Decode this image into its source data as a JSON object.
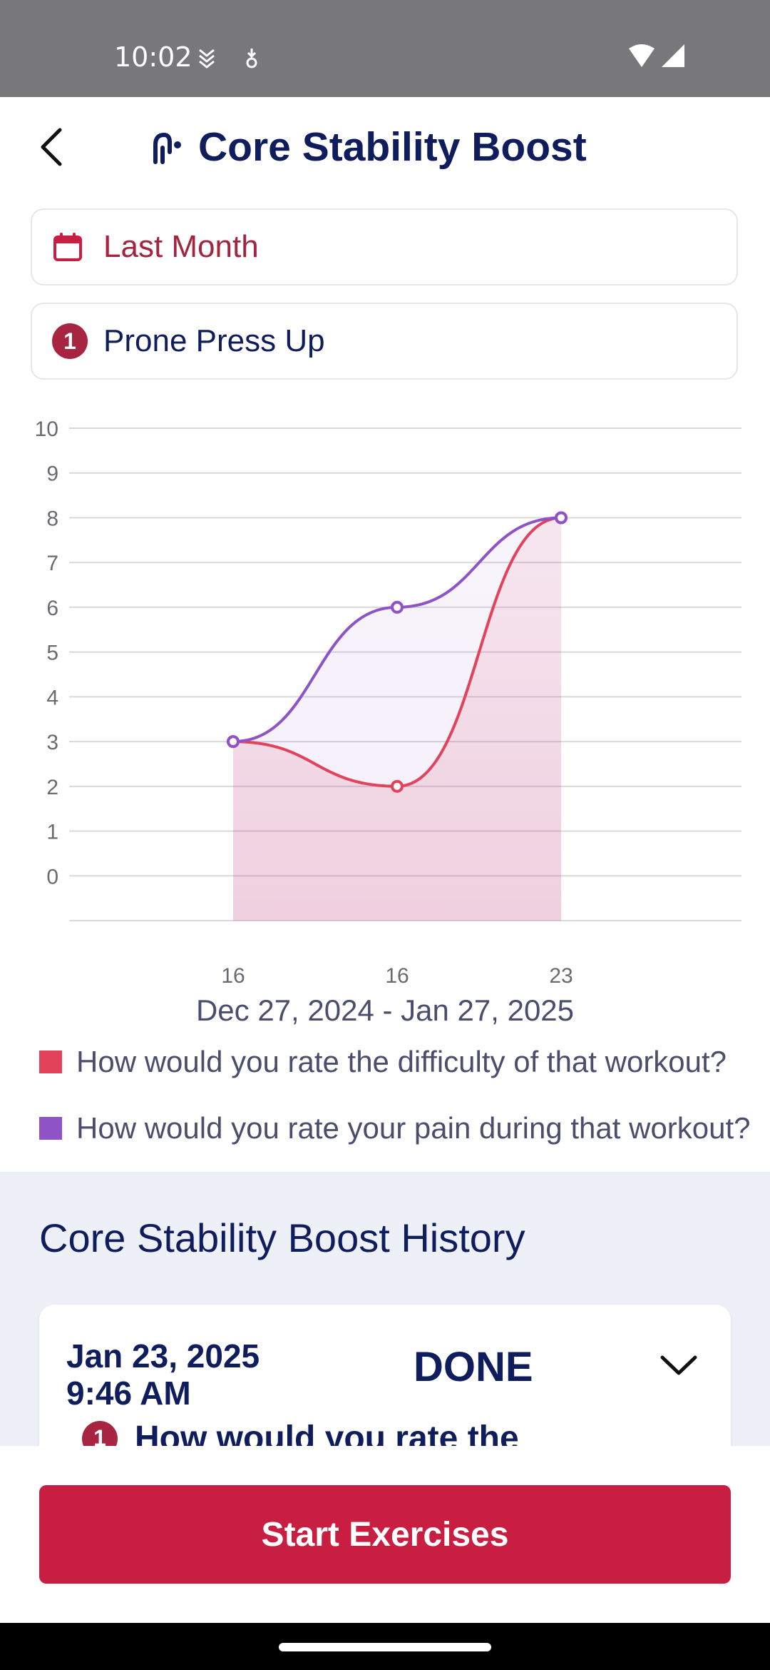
{
  "status_bar": {
    "time": "10:02",
    "left_icons": [
      "layers-icon",
      "download-icon"
    ],
    "right_icons": [
      "wifi-icon",
      "signal-icon"
    ]
  },
  "header": {
    "title": "Core Stability Boost",
    "back_icon": "chevron-left-icon",
    "title_icon": "exercise-figure-icon"
  },
  "date_picker": {
    "label": "Last Month",
    "icon": "calendar-icon"
  },
  "exercise_picker": {
    "number": "1",
    "label": "Prone Press Up"
  },
  "chart_data": {
    "type": "line",
    "x": [
      "16",
      "16",
      "23"
    ],
    "x_range_label": "Dec 27, 2024 - Jan 27, 2025",
    "yticks": [
      10,
      9,
      8,
      7,
      6,
      5,
      4,
      3,
      2,
      1,
      0
    ],
    "ylim": [
      -1,
      10
    ],
    "grid": true,
    "legend_position": "bottom",
    "series": [
      {
        "name": "How would you rate the difficulty of that workout?",
        "values": [
          3,
          2,
          8
        ],
        "color": "#e2435a"
      },
      {
        "name": "How would you rate your pain during that workout?",
        "values": [
          3,
          6,
          8
        ],
        "color": "#8e54c7"
      }
    ]
  },
  "history": {
    "title": "Core Stability Boost History",
    "card": {
      "date": "Jan 23, 2025",
      "time": "9:46 AM",
      "status": "DONE",
      "question_number": "1",
      "question_text": "How would you rate the"
    }
  },
  "actions": {
    "start_label": "Start Exercises"
  },
  "colors": {
    "navy": "#0f1d5c",
    "accent": "#c81e42",
    "difficulty": "#e2435a",
    "pain": "#8e54c7"
  }
}
